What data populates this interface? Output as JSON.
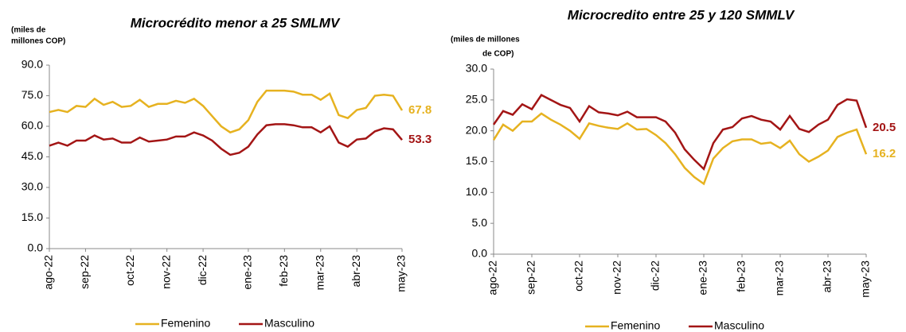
{
  "chart_data": [
    {
      "type": "line",
      "title": "Microcrédito menor a 25 SMLMV",
      "y_label": [
        "(miles de",
        "millones COP)"
      ],
      "categories": [
        "ago-22",
        null,
        null,
        null,
        "sep-22",
        null,
        null,
        null,
        null,
        "oct-22",
        null,
        null,
        null,
        "nov-22",
        null,
        null,
        null,
        "dic-22",
        null,
        null,
        null,
        null,
        "ene-23",
        null,
        null,
        null,
        "feb-23",
        null,
        null,
        null,
        "mar-23",
        null,
        null,
        null,
        "abr-23",
        null,
        null,
        null,
        null,
        "may-23"
      ],
      "series": [
        {
          "name": "Femenino",
          "color": "#e6b220",
          "values": [
            67,
            68,
            67,
            70,
            69.5,
            73.5,
            70.5,
            72,
            69.5,
            70,
            73,
            69.5,
            71,
            71,
            72.5,
            71.5,
            73.5,
            70,
            65,
            60,
            57,
            58.5,
            63,
            72,
            77.5,
            77.5,
            77.5,
            77,
            75.5,
            75.5,
            73,
            76,
            65.5,
            64,
            68,
            69,
            75,
            75.5,
            75,
            67.8
          ]
        },
        {
          "name": "Masculino",
          "color": "#a31515",
          "values": [
            50.5,
            52,
            50.5,
            53,
            53,
            55.5,
            53.5,
            54,
            52,
            52,
            54.5,
            52.5,
            53,
            53.5,
            55,
            55,
            57,
            55.5,
            53,
            49,
            46,
            47,
            50,
            56,
            60.5,
            61,
            61,
            60.5,
            59.5,
            59.5,
            57,
            60,
            52,
            50,
            53.5,
            54,
            57.5,
            59,
            58.5,
            53.3
          ]
        }
      ],
      "ylim": [
        0,
        90
      ],
      "yticks": [
        {
          "value": 0,
          "label": "0.0"
        },
        {
          "value": 15,
          "label": "15.0"
        },
        {
          "value": 30,
          "label": "30.0"
        },
        {
          "value": 45,
          "label": "45.0"
        },
        {
          "value": 60,
          "label": "60.0"
        },
        {
          "value": 75,
          "label": "75.0"
        },
        {
          "value": 90,
          "label": "90.0"
        }
      ],
      "grid": false
    },
    {
      "type": "line",
      "title": "Microcredito entre 25 y 120 SMMLV",
      "y_label": [
        "(miles de millones",
        "de COP)"
      ],
      "categories": [
        "ago-22",
        null,
        null,
        null,
        "sep-22",
        null,
        null,
        null,
        null,
        "oct-22",
        null,
        null,
        null,
        "nov-22",
        null,
        null,
        null,
        "dic-22",
        null,
        null,
        null,
        null,
        "ene-23",
        null,
        null,
        null,
        "feb-23",
        null,
        null,
        null,
        "mar-23",
        null,
        null,
        null,
        null,
        "abr-23",
        null,
        null,
        null,
        "may-23"
      ],
      "series": [
        {
          "name": "Femenino",
          "color": "#e6b220",
          "values": [
            18.5,
            21,
            20,
            21.5,
            21.5,
            22.8,
            21.8,
            21,
            20,
            18.7,
            21.2,
            20.8,
            20.5,
            20.3,
            21.2,
            20.2,
            20.3,
            19.3,
            18,
            16.2,
            14,
            12.5,
            11.4,
            15.5,
            17.2,
            18.3,
            18.6,
            18.6,
            17.9,
            18.1,
            17.2,
            18.4,
            16.2,
            15,
            15.8,
            16.8,
            19,
            19.7,
            20.2,
            16.2
          ]
        },
        {
          "name": "Masculino",
          "color": "#a31515",
          "values": [
            21,
            23.2,
            22.6,
            24.3,
            23.5,
            25.8,
            25,
            24.2,
            23.7,
            21.5,
            24,
            23,
            22.8,
            22.5,
            23.1,
            22.2,
            22.2,
            22.2,
            21.5,
            19.7,
            17,
            15.3,
            13.8,
            18,
            20.2,
            20.6,
            22,
            22.4,
            21.8,
            21.5,
            20.2,
            22.4,
            20.3,
            19.8,
            21,
            21.8,
            24.2,
            25.1,
            24.9,
            20.5
          ]
        }
      ],
      "ylim": [
        0,
        30
      ],
      "yticks": [
        {
          "value": 0,
          "label": "0.0"
        },
        {
          "value": 5,
          "label": "5.0"
        },
        {
          "value": 10,
          "label": "10.0"
        },
        {
          "value": 15,
          "label": "15.0"
        },
        {
          "value": 20,
          "label": "20.0"
        },
        {
          "value": 25,
          "label": "25.0"
        },
        {
          "value": 30,
          "label": "30.0"
        }
      ],
      "grid": false
    }
  ]
}
